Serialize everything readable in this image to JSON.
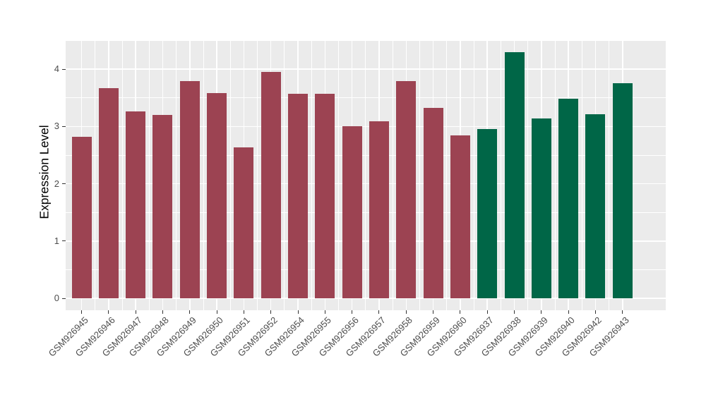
{
  "chart_data": {
    "type": "bar",
    "title": "",
    "xlabel": "",
    "ylabel": "Expression Level",
    "ylim": [
      0,
      4.51
    ],
    "yticks": [
      0,
      1,
      2,
      3,
      4
    ],
    "legend": "none",
    "grid": {
      "panel_bg": "#EBEBEB",
      "major": "#FFFFFF",
      "minor": "#FFFFFF"
    },
    "categories": [
      "GSM926945",
      "GSM926946",
      "GSM926947",
      "GSM926948",
      "GSM926949",
      "GSM926950",
      "GSM926951",
      "GSM926952",
      "GSM926954",
      "GSM926955",
      "GSM926956",
      "GSM926957",
      "GSM926958",
      "GSM926959",
      "GSM926960",
      "GSM926937",
      "GSM926938",
      "GSM926939",
      "GSM926940",
      "GSM926942",
      "GSM926943"
    ],
    "values": [
      2.82,
      3.67,
      3.26,
      3.2,
      3.79,
      3.58,
      2.63,
      3.95,
      3.57,
      3.57,
      3.01,
      3.09,
      3.79,
      3.33,
      2.85,
      2.96,
      4.3,
      3.14,
      3.48,
      3.21,
      3.76
    ],
    "bar_colors": [
      "#9C4352",
      "#9C4352",
      "#9C4352",
      "#9C4352",
      "#9C4352",
      "#9C4352",
      "#9C4352",
      "#9C4352",
      "#9C4352",
      "#9C4352",
      "#9C4352",
      "#9C4352",
      "#9C4352",
      "#9C4352",
      "#9C4352",
      "#006647",
      "#006647",
      "#006647",
      "#006647",
      "#006647",
      "#006647"
    ],
    "palette": {
      "group_left": "#9C4352",
      "group_right": "#006647"
    },
    "tick_text_color": "#4d4d4d"
  }
}
